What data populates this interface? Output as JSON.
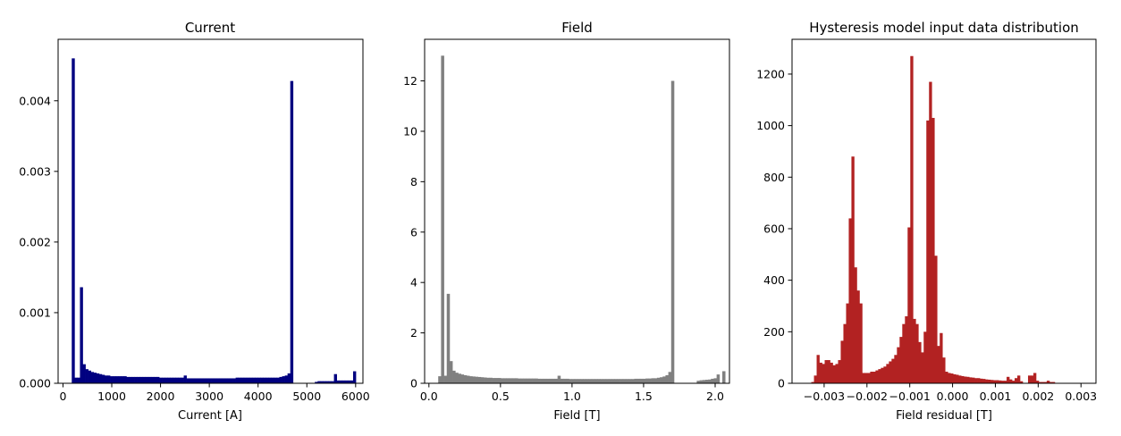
{
  "chart_data": [
    {
      "type": "bar",
      "title": "Current",
      "xlabel": "Current [A]",
      "ylabel": "",
      "color": "#000080",
      "xlim": [
        -100,
        6150
      ],
      "ylim": [
        0,
        0.00487
      ],
      "xticks": [
        0,
        1000,
        2000,
        3000,
        4000,
        5000,
        6000
      ],
      "xtick_labels": [
        "0",
        "1000",
        "2000",
        "3000",
        "4000",
        "5000",
        "6000"
      ],
      "yticks": [
        0,
        0.001,
        0.002,
        0.003,
        0.004
      ],
      "ytick_labels": [
        "0.000",
        "0.001",
        "0.002",
        "0.003",
        "0.004"
      ],
      "grid": false,
      "bin_edges_start": 180,
      "bin_width": 56,
      "values": [
        0.0046,
        8e-05,
        8e-05,
        0.00136,
        0.00027,
        0.0002,
        0.00018,
        0.00016,
        0.00015,
        0.00014,
        0.00013,
        0.00012,
        0.00011,
        0.00011,
        0.0001,
        0.0001,
        0.0001,
        0.0001,
        0.0001,
        0.0001,
        9e-05,
        9e-05,
        9e-05,
        9e-05,
        9e-05,
        9e-05,
        9e-05,
        9e-05,
        9e-05,
        9e-05,
        9e-05,
        9e-05,
        8e-05,
        8e-05,
        8e-05,
        8e-05,
        8e-05,
        8e-05,
        8e-05,
        8e-05,
        8e-05,
        0.00011,
        7e-05,
        7e-05,
        7e-05,
        7e-05,
        7e-05,
        7e-05,
        7e-05,
        7e-05,
        7e-05,
        7e-05,
        7e-05,
        7e-05,
        7e-05,
        7e-05,
        7e-05,
        7e-05,
        7e-05,
        7e-05,
        8e-05,
        8e-05,
        8e-05,
        8e-05,
        8e-05,
        8e-05,
        8e-05,
        8e-05,
        8e-05,
        8e-05,
        8e-05,
        8e-05,
        8e-05,
        8e-05,
        8e-05,
        8e-05,
        9e-05,
        0.0001,
        0.00011,
        0.00014,
        0.00428,
        0,
        0,
        0,
        0,
        0,
        0,
        0,
        0,
        2e-05,
        3e-05,
        3e-05,
        3e-05,
        3e-05,
        3e-05,
        3e-05,
        0.00013,
        4e-05,
        4e-05,
        4e-05,
        4e-05,
        4e-05,
        4e-05,
        0.00017
      ]
    },
    {
      "type": "bar",
      "title": "Field",
      "xlabel": "Field [T]",
      "ylabel": "",
      "color": "#808080",
      "xlim": [
        -0.03,
        2.1
      ],
      "ylim": [
        0,
        13.65
      ],
      "xticks": [
        0.0,
        0.5,
        1.0,
        1.5,
        2.0
      ],
      "xtick_labels": [
        "0.0",
        "0.5",
        "1.0",
        "1.5",
        "2.0"
      ],
      "yticks": [
        0,
        2,
        4,
        6,
        8,
        10,
        12
      ],
      "ytick_labels": [
        "0",
        "2",
        "4",
        "6",
        "8",
        "10",
        "12"
      ],
      "grid": false,
      "bin_edges_start": 0.065,
      "bin_width": 0.01985,
      "values": [
        0.28,
        13.0,
        0.3,
        3.55,
        0.88,
        0.5,
        0.42,
        0.38,
        0.35,
        0.32,
        0.3,
        0.28,
        0.27,
        0.26,
        0.25,
        0.24,
        0.23,
        0.22,
        0.22,
        0.21,
        0.21,
        0.21,
        0.2,
        0.2,
        0.2,
        0.2,
        0.2,
        0.2,
        0.19,
        0.19,
        0.19,
        0.19,
        0.19,
        0.19,
        0.19,
        0.18,
        0.18,
        0.18,
        0.18,
        0.18,
        0.18,
        0.18,
        0.3,
        0.18,
        0.18,
        0.18,
        0.17,
        0.17,
        0.17,
        0.17,
        0.17,
        0.17,
        0.17,
        0.17,
        0.17,
        0.17,
        0.17,
        0.17,
        0.17,
        0.17,
        0.17,
        0.17,
        0.17,
        0.17,
        0.17,
        0.17,
        0.17,
        0.17,
        0.17,
        0.18,
        0.18,
        0.18,
        0.18,
        0.19,
        0.19,
        0.2,
        0.2,
        0.22,
        0.24,
        0.27,
        0.32,
        0.45,
        12.0,
        0.0,
        0.0,
        0.0,
        0.0,
        0.0,
        0.0,
        0.0,
        0.0,
        0.1,
        0.12,
        0.13,
        0.14,
        0.15,
        0.18,
        0.2,
        0.35,
        0.0,
        0.48
      ]
    },
    {
      "type": "bar",
      "title": "Hysteresis model input data distribution",
      "xlabel": "Field residual [T]",
      "ylabel": "",
      "color": "#b22222",
      "xlim": [
        -0.00375,
        0.00335
      ],
      "ylim": [
        0,
        1335
      ],
      "xticks": [
        -0.003,
        -0.002,
        -0.001,
        0.0,
        0.001,
        0.002,
        0.003
      ],
      "xtick_labels": [
        "−0.003",
        "−0.002",
        "−0.001",
        "0.000",
        "0.001",
        "0.002",
        "0.003"
      ],
      "yticks": [
        0,
        200,
        400,
        600,
        800,
        1000,
        1200
      ],
      "ytick_labels": [
        "0",
        "200",
        "400",
        "600",
        "800",
        "1000",
        "1200"
      ],
      "grid": false,
      "bin_edges_start": -0.0033,
      "bin_width": 6.25e-05,
      "values": [
        5,
        30,
        110,
        80,
        75,
        90,
        90,
        80,
        70,
        75,
        90,
        165,
        230,
        310,
        640,
        880,
        450,
        360,
        310,
        40,
        40,
        40,
        45,
        45,
        50,
        55,
        60,
        65,
        75,
        85,
        95,
        110,
        140,
        180,
        230,
        260,
        605,
        1270,
        250,
        230,
        160,
        120,
        200,
        1020,
        1170,
        1030,
        495,
        145,
        195,
        100,
        45,
        40,
        38,
        35,
        33,
        30,
        28,
        26,
        25,
        23,
        22,
        20,
        20,
        18,
        17,
        15,
        14,
        13,
        12,
        12,
        11,
        10,
        10,
        25,
        15,
        10,
        20,
        30,
        8,
        0,
        0,
        30,
        30,
        40,
        10,
        5,
        5,
        5,
        10,
        5,
        5
      ]
    }
  ]
}
